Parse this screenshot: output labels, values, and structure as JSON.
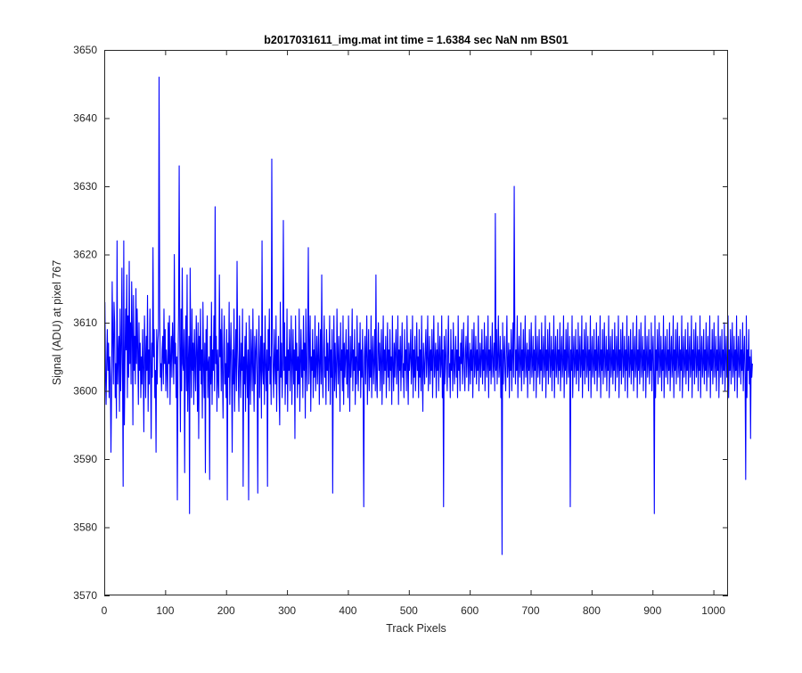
{
  "chart_data": {
    "type": "line",
    "title": "b2017031611_img.mat int time = 1.6384 sec  NaN nm BS01",
    "xlabel": "Track Pixels",
    "ylabel": "Signal (ADU) at pixel 767",
    "xlim": [
      0,
      1024
    ],
    "ylim": [
      3570,
      3650
    ],
    "xticks": [
      0,
      100,
      200,
      300,
      400,
      500,
      600,
      700,
      800,
      900,
      1000
    ],
    "yticks": [
      3570,
      3580,
      3590,
      3600,
      3610,
      3620,
      3630,
      3640,
      3650
    ],
    "grid": false,
    "legend": "none",
    "series": [
      {
        "color": "#0000ff",
        "x_start": 1,
        "x_step": 1,
        "values": [
          3613,
          3603,
          3598,
          3604,
          3609,
          3603,
          3607,
          3599,
          3605,
          3602,
          3591,
          3600,
          3616,
          3608,
          3601,
          3613,
          3610,
          3599,
          3604,
          3596,
          3622,
          3601,
          3605,
          3608,
          3597,
          3612,
          3600,
          3606,
          3618,
          3602,
          3586,
          3622,
          3595,
          3604,
          3612,
          3606,
          3617,
          3599,
          3611,
          3602,
          3619,
          3604,
          3610,
          3601,
          3616,
          3609,
          3595,
          3614,
          3603,
          3608,
          3601,
          3615,
          3604,
          3612,
          3606,
          3598,
          3610,
          3603,
          3607,
          3599,
          3605,
          3601,
          3609,
          3603,
          3594,
          3611,
          3606,
          3599,
          3608,
          3603,
          3614,
          3597,
          3606,
          3601,
          3612,
          3604,
          3593,
          3607,
          3602,
          3621,
          3605,
          3609,
          3599,
          3603,
          3591,
          3609,
          3601,
          3607,
          3609,
          3646,
          3612,
          3602,
          3604,
          3600,
          3606,
          3608,
          3601,
          3612,
          3604,
          3609,
          3600,
          3606,
          3603,
          3599,
          3610,
          3604,
          3611,
          3598,
          3605,
          3608,
          3602,
          3610,
          3606,
          3601,
          3620,
          3604,
          3607,
          3599,
          3605,
          3584,
          3604,
          3611,
          3633,
          3607,
          3594,
          3612,
          3600,
          3618,
          3604,
          3603,
          3609,
          3588,
          3606,
          3611,
          3600,
          3617,
          3597,
          3604,
          3608,
          3582,
          3618,
          3605,
          3599,
          3612,
          3603,
          3607,
          3598,
          3609,
          3604,
          3600,
          3611,
          3606,
          3597,
          3610,
          3593,
          3608,
          3603,
          3612,
          3601,
          3606,
          3596,
          3613,
          3604,
          3599,
          3607,
          3588,
          3609,
          3603,
          3611,
          3599,
          3604,
          3605,
          3587,
          3608,
          3601,
          3613,
          3598,
          3606,
          3603,
          3611,
          3600,
          3627,
          3604,
          3608,
          3597,
          3606,
          3602,
          3599,
          3617,
          3605,
          3609,
          3600,
          3612,
          3603,
          3596,
          3606,
          3611,
          3601,
          3604,
          3599,
          3609,
          3584,
          3607,
          3602,
          3613,
          3598,
          3605,
          3610,
          3603,
          3591,
          3606,
          3601,
          3612,
          3597,
          3604,
          3609,
          3600,
          3619,
          3606,
          3602,
          3597,
          3611,
          3604,
          3599,
          3607,
          3603,
          3612,
          3586,
          3605,
          3601,
          3608,
          3597,
          3610,
          3604,
          3599,
          3606,
          3584,
          3611,
          3603,
          3598,
          3609,
          3605,
          3600,
          3612,
          3603,
          3597,
          3608,
          3601,
          3606,
          3609,
          3602,
          3585,
          3605,
          3611,
          3599,
          3604,
          3608,
          3596,
          3622,
          3603,
          3601,
          3607,
          3598,
          3611,
          3604,
          3600,
          3606,
          3586,
          3609,
          3603,
          3612,
          3601,
          3605,
          3598,
          3634,
          3607,
          3603,
          3599,
          3609,
          3604,
          3601,
          3611,
          3597,
          3606,
          3603,
          3608,
          3600,
          3595,
          3613,
          3602,
          3607,
          3599,
          3604,
          3625,
          3603,
          3610,
          3598,
          3605,
          3601,
          3612,
          3597,
          3606,
          3603,
          3609,
          3600,
          3605,
          3611,
          3598,
          3604,
          3609,
          3601,
          3606,
          3593,
          3611,
          3603,
          3607,
          3599,
          3605,
          3601,
          3612,
          3597,
          3604,
          3609,
          3602,
          3606,
          3599,
          3611,
          3603,
          3607,
          3596,
          3612,
          3604,
          3600,
          3608,
          3621,
          3601,
          3606,
          3611,
          3597,
          3605,
          3603,
          3609,
          3599,
          3606,
          3602,
          3611,
          3600,
          3604,
          3608,
          3601,
          3605,
          3610,
          3598,
          3604,
          3609,
          3601,
          3617,
          3603,
          3599,
          3606,
          3611,
          3602,
          3605,
          3598,
          3609,
          3603,
          3607,
          3600,
          3605,
          3611,
          3598,
          3606,
          3602,
          3609,
          3585,
          3604,
          3611,
          3600,
          3607,
          3603,
          3599,
          3612,
          3605,
          3601,
          3608,
          3604,
          3597,
          3610,
          3603,
          3606,
          3600,
          3611,
          3598,
          3607,
          3602,
          3605,
          3609,
          3601,
          3606,
          3599,
          3611,
          3604,
          3597,
          3608,
          3602,
          3605,
          3612,
          3600,
          3606,
          3603,
          3609,
          3598,
          3605,
          3601,
          3611,
          3604,
          3600,
          3607,
          3603,
          3610,
          3599,
          3606,
          3602,
          3609,
          3600,
          3583,
          3605,
          3608,
          3601,
          3606,
          3611,
          3598,
          3604,
          3609,
          3600,
          3606,
          3602,
          3611,
          3599,
          3605,
          3608,
          3601,
          3604,
          3609,
          3600,
          3617,
          3602,
          3599,
          3606,
          3610,
          3603,
          3607,
          3600,
          3605,
          3609,
          3598,
          3604,
          3611,
          3601,
          3606,
          3603,
          3608,
          3599,
          3604,
          3610,
          3602,
          3606,
          3600,
          3609,
          3603,
          3605,
          3598,
          3611,
          3604,
          3600,
          3607,
          3602,
          3606,
          3609,
          3601,
          3604,
          3611,
          3598,
          3606,
          3603,
          3608,
          3600,
          3605,
          3610,
          3602,
          3604,
          3599,
          3609,
          3603,
          3606,
          3600,
          3611,
          3604,
          3598,
          3607,
          3603,
          3605,
          3609,
          3601,
          3604,
          3611,
          3599,
          3606,
          3602,
          3608,
          3600,
          3604,
          3610,
          3603,
          3605,
          3599,
          3609,
          3602,
          3606,
          3600,
          3611,
          3603,
          3597,
          3607,
          3604,
          3601,
          3606,
          3609,
          3602,
          3605,
          3611,
          3600,
          3604,
          3608,
          3601,
          3606,
          3603,
          3609,
          3599,
          3605,
          3611,
          3602,
          3604,
          3607,
          3599,
          3606,
          3603,
          3610,
          3600,
          3605,
          3608,
          3602,
          3604,
          3611,
          3599,
          3606,
          3583,
          3608,
          3601,
          3605,
          3609,
          3603,
          3600,
          3606,
          3611,
          3602,
          3604,
          3599,
          3609,
          3603,
          3606,
          3600,
          3610,
          3604,
          3601,
          3605,
          3608,
          3602,
          3606,
          3599,
          3611,
          3603,
          3605,
          3600,
          3607,
          3604,
          3609,
          3601,
          3605,
          3610,
          3603,
          3600,
          3606,
          3608,
          3602,
          3605,
          3611,
          3600,
          3604,
          3607,
          3601,
          3606,
          3603,
          3609,
          3599,
          3605,
          3610,
          3602,
          3604,
          3608,
          3601,
          3606,
          3603,
          3611,
          3600,
          3604,
          3607,
          3602,
          3605,
          3609,
          3601,
          3606,
          3603,
          3610,
          3600,
          3605,
          3608,
          3602,
          3604,
          3611,
          3599,
          3606,
          3603,
          3608,
          3601,
          3605,
          3610,
          3602,
          3604,
          3607,
          3600,
          3626,
          3603,
          3609,
          3601,
          3605,
          3611,
          3602,
          3604,
          3608,
          3599,
          3606,
          3576,
          3610,
          3601,
          3605,
          3608,
          3603,
          3600,
          3606,
          3611,
          3602,
          3604,
          3607,
          3599,
          3606,
          3603,
          3609,
          3600,
          3605,
          3610,
          3602,
          3630,
          3608,
          3601,
          3606,
          3603,
          3611,
          3599,
          3605,
          3608,
          3602,
          3604,
          3610,
          3600,
          3606,
          3603,
          3609,
          3601,
          3605,
          3611,
          3602,
          3604,
          3607,
          3599,
          3606,
          3603,
          3609,
          3601,
          3605,
          3610,
          3602,
          3604,
          3608,
          3600,
          3606,
          3603,
          3611,
          3599,
          3605,
          3608,
          3602,
          3604,
          3609,
          3601,
          3606,
          3603,
          3610,
          3600,
          3605,
          3608,
          3602,
          3604,
          3611,
          3599,
          3606,
          3603,
          3609,
          3601,
          3605,
          3610,
          3602,
          3604,
          3608,
          3600,
          3606,
          3603,
          3611,
          3599,
          3605,
          3608,
          3602,
          3604,
          3609,
          3601,
          3606,
          3603,
          3610,
          3600,
          3605,
          3608,
          3602,
          3604,
          3611,
          3599,
          3606,
          3603,
          3609,
          3601,
          3605,
          3610,
          3602,
          3604,
          3608,
          3583,
          3606,
          3603,
          3611,
          3599,
          3605,
          3608,
          3602,
          3604,
          3609,
          3601,
          3606,
          3603,
          3610,
          3600,
          3605,
          3608,
          3602,
          3604,
          3611,
          3599,
          3606,
          3603,
          3609,
          3601,
          3605,
          3610,
          3602,
          3604,
          3608,
          3600,
          3606,
          3603,
          3611,
          3599,
          3605,
          3608,
          3602,
          3604,
          3609,
          3601,
          3606,
          3603,
          3610,
          3600,
          3605,
          3608,
          3602,
          3604,
          3611,
          3599,
          3606,
          3603,
          3609,
          3601,
          3605,
          3610,
          3602,
          3604,
          3608,
          3600,
          3606,
          3603,
          3611,
          3599,
          3605,
          3608,
          3602,
          3604,
          3609,
          3601,
          3606,
          3603,
          3610,
          3600,
          3605,
          3608,
          3602,
          3604,
          3611,
          3599,
          3606,
          3603,
          3609,
          3601,
          3605,
          3610,
          3602,
          3604,
          3608,
          3600,
          3606,
          3603,
          3611,
          3599,
          3605,
          3608,
          3602,
          3604,
          3609,
          3601,
          3606,
          3603,
          3610,
          3600,
          3605,
          3608,
          3602,
          3604,
          3611,
          3599,
          3606,
          3603,
          3609,
          3601,
          3605,
          3610,
          3602,
          3604,
          3608,
          3600,
          3606,
          3603,
          3611,
          3599,
          3605,
          3608,
          3602,
          3604,
          3609,
          3601,
          3606,
          3603,
          3610,
          3600,
          3605,
          3608,
          3602,
          3582,
          3611,
          3599,
          3606,
          3603,
          3609,
          3601,
          3605,
          3610,
          3602,
          3604,
          3608,
          3600,
          3606,
          3603,
          3611,
          3599,
          3605,
          3608,
          3602,
          3604,
          3609,
          3601,
          3606,
          3603,
          3610,
          3600,
          3605,
          3608,
          3602,
          3604,
          3611,
          3599,
          3606,
          3603,
          3609,
          3601,
          3605,
          3610,
          3602,
          3604,
          3608,
          3600,
          3606,
          3603,
          3611,
          3599,
          3605,
          3608,
          3602,
          3604,
          3609,
          3601,
          3606,
          3603,
          3610,
          3600,
          3605,
          3608,
          3602,
          3604,
          3611,
          3599,
          3606,
          3603,
          3609,
          3601,
          3605,
          3610,
          3602,
          3604,
          3608,
          3600,
          3606,
          3603,
          3611,
          3599,
          3605,
          3608,
          3602,
          3604,
          3609,
          3601,
          3606,
          3603,
          3610,
          3600,
          3605,
          3608,
          3602,
          3604,
          3611,
          3599,
          3606,
          3603,
          3609,
          3601,
          3605,
          3610,
          3602,
          3604,
          3608,
          3600,
          3606,
          3603,
          3611,
          3599,
          3605,
          3608,
          3602,
          3604,
          3609,
          3601,
          3606,
          3603,
          3610,
          3600,
          3605,
          3608,
          3602,
          3604,
          3611,
          3599,
          3606,
          3603,
          3609,
          3601,
          3605,
          3610,
          3602,
          3604,
          3608,
          3600,
          3606,
          3603,
          3611,
          3599,
          3605,
          3608,
          3602,
          3604,
          3609,
          3601,
          3606,
          3603,
          3610,
          3600,
          3605,
          3608,
          3602,
          3587,
          3611,
          3599,
          3606,
          3603,
          3609,
          3601,
          3605,
          3593,
          3606,
          3602,
          3604
        ]
      }
    ]
  }
}
